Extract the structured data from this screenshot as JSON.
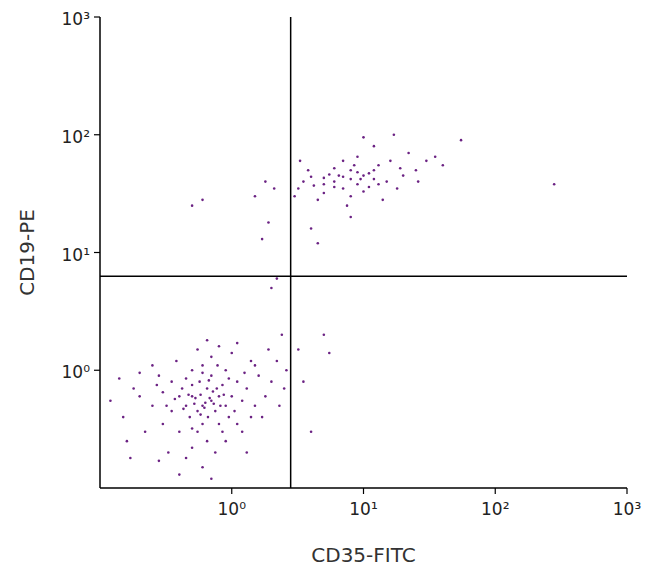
{
  "chart_data": {
    "type": "scatter",
    "x_label": "CD35-FITC",
    "y_label": "CD19-PE",
    "color": "#6b2283",
    "marker": "dot",
    "log": true,
    "grid": false,
    "xlim": [
      0.1,
      1000
    ],
    "ylim": [
      0.1,
      1000
    ],
    "xticks": [
      {
        "value": 1,
        "label": "10⁰"
      },
      {
        "value": 10,
        "label": "10¹"
      },
      {
        "value": 100,
        "label": "10²"
      },
      {
        "value": 1000,
        "label": "10³"
      }
    ],
    "yticks": [
      {
        "value": 1,
        "label": "10⁰"
      },
      {
        "value": 10,
        "label": "10¹"
      },
      {
        "value": 100,
        "label": "10²"
      },
      {
        "value": 1000,
        "label": "10³"
      }
    ],
    "quadrant_x": 2.8,
    "quadrant_y": 6.3,
    "x": [
      0.6,
      0.5,
      0.7,
      0.55,
      0.65,
      0.45,
      0.8,
      0.75,
      0.5,
      0.6,
      0.4,
      0.9,
      0.85,
      0.35,
      0.7,
      0.55,
      1.0,
      0.3,
      0.65,
      1.1,
      0.45,
      0.8,
      0.5,
      0.95,
      0.25,
      1.2,
      0.4,
      0.6,
      0.75,
      1.3,
      0.2,
      0.35,
      0.9,
      0.5,
      1.5,
      0.3,
      0.7,
      1.1,
      0.45,
      0.28,
      0.58,
      0.62,
      0.68,
      0.52,
      0.72,
      0.48,
      0.82,
      0.57,
      0.66,
      0.42,
      1.6,
      1.8,
      2.0,
      2.3,
      1.4,
      0.15,
      0.18,
      0.12,
      0.22,
      0.25,
      0.38,
      0.55,
      0.8,
      1.0,
      0.33,
      0.6,
      0.9,
      1.2,
      1.7,
      2.5,
      0.16,
      0.4,
      0.7,
      1.3,
      0.28,
      1.5,
      2.2,
      0.65,
      1.1,
      0.2,
      0.53,
      0.63,
      0.73,
      0.47,
      0.58,
      0.77,
      0.43,
      0.67,
      0.87,
      0.37,
      0.95,
      1.05,
      0.32,
      0.5,
      0.85,
      1.25,
      0.27,
      0.6,
      0.78,
      1.4,
      2.6,
      2.4,
      1.9,
      0.14,
      0.17,
      3.5,
      4.0,
      5.0,
      5.5,
      3.2,
      8,
      6,
      10,
      5,
      12,
      7,
      9,
      4,
      15,
      6,
      11,
      8,
      5,
      13,
      20,
      3.5,
      7,
      9,
      25,
      4.5,
      6.5,
      10,
      16,
      3.2,
      18,
      8.5,
      12,
      5.5,
      30,
      14,
      22,
      10,
      17,
      12,
      35,
      55,
      40,
      7.5,
      3.8,
      9.5,
      6,
      11,
      7,
      4.2,
      13,
      8,
      5,
      19,
      26,
      9,
      280,
      2.1,
      1.8,
      1.5,
      0.5,
      0.6,
      1.7,
      1.9,
      4.5,
      4,
      2.0,
      2.2,
      3.3,
      3,
      8
    ],
    "values": [
      0.5,
      0.6,
      0.55,
      0.45,
      0.7,
      0.5,
      0.6,
      0.45,
      0.75,
      0.35,
      0.6,
      0.5,
      0.75,
      0.45,
      0.9,
      0.3,
      0.6,
      0.65,
      0.25,
      0.8,
      0.85,
      0.35,
      1.0,
      0.4,
      0.5,
      0.55,
      0.3,
      1.1,
      0.2,
      0.7,
      0.6,
      0.8,
      1.0,
      0.22,
      0.5,
      0.35,
      1.3,
      0.35,
      0.18,
      0.9,
      0.62,
      0.48,
      0.58,
      0.52,
      0.66,
      0.4,
      0.5,
      0.8,
      0.4,
      0.7,
      0.9,
      0.6,
      0.8,
      0.5,
      1.2,
      0.4,
      0.7,
      0.55,
      0.3,
      1.1,
      1.2,
      1.5,
      1.6,
      1.4,
      0.2,
      0.15,
      0.25,
      0.3,
      0.4,
      0.7,
      0.25,
      0.13,
      0.12,
      0.2,
      0.17,
      1.1,
      1.2,
      1.8,
      1.7,
      0.95,
      0.58,
      0.53,
      0.52,
      0.62,
      0.42,
      0.7,
      0.47,
      0.82,
      0.62,
      0.57,
      0.85,
      0.45,
      0.5,
      0.32,
      0.3,
      0.95,
      0.75,
      0.95,
      1.1,
      0.4,
      1.0,
      2.0,
      1.5,
      0.85,
      0.18,
      0.8,
      0.3,
      2.0,
      1.4,
      1.5,
      42,
      40,
      45,
      38,
      50,
      35,
      48,
      44,
      40,
      52,
      36,
      30,
      32,
      55,
      45,
      40,
      60,
      38,
      50,
      28,
      45,
      33,
      60,
      35,
      35,
      55,
      42,
      46,
      60,
      28,
      70,
      95,
      100,
      80,
      65,
      90,
      55,
      25,
      50,
      42,
      36,
      47,
      44,
      37,
      38,
      50,
      43,
      52,
      40,
      65,
      38,
      35,
      40,
      30,
      25,
      28,
      13,
      18,
      12,
      16,
      5,
      6,
      60,
      30,
      20
    ]
  }
}
